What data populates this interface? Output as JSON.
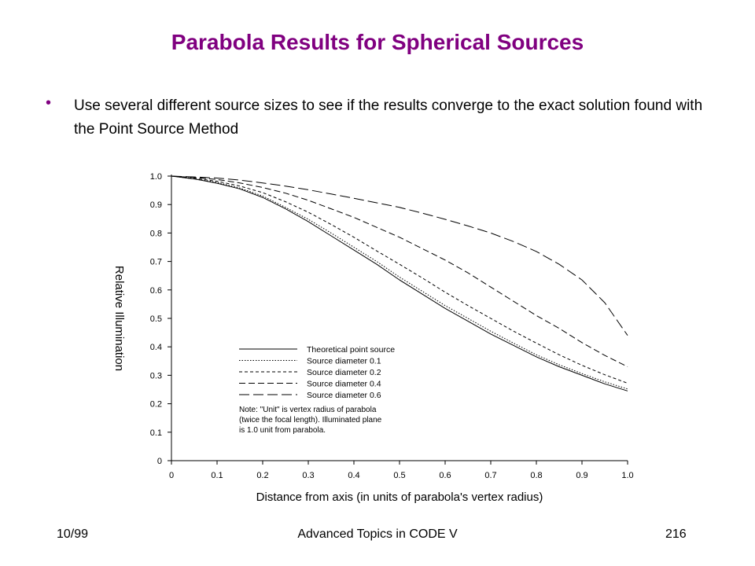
{
  "slide": {
    "title": "Parabola Results for Spherical Sources",
    "bullet": "Use several different source sizes to see if the results converge to the exact solution found with the Point Source Method"
  },
  "footer": {
    "left": "10/99",
    "center": "Advanced Topics in CODE V",
    "right": "216"
  },
  "chart_data": {
    "type": "line",
    "title": "",
    "xlabel": "Distance from axis (in units of parabola's vertex radius)",
    "ylabel": "Relative Illumination",
    "xlim": [
      0,
      1.0
    ],
    "ylim": [
      0,
      1.0
    ],
    "x_ticks": [
      "0",
      "0.1",
      "0.2",
      "0.3",
      "0.4",
      "0.5",
      "0.6",
      "0.7",
      "0.8",
      "0.9",
      "1.0"
    ],
    "y_ticks": [
      "0",
      "0.1",
      "0.2",
      "0.3",
      "0.4",
      "0.5",
      "0.6",
      "0.7",
      "0.8",
      "0.9",
      "1.0"
    ],
    "grid": false,
    "legend_position": "lower-left",
    "x": [
      0,
      0.05,
      0.1,
      0.15,
      0.2,
      0.25,
      0.3,
      0.35,
      0.4,
      0.45,
      0.5,
      0.55,
      0.6,
      0.65,
      0.7,
      0.75,
      0.8,
      0.85,
      0.9,
      0.95,
      1.0
    ],
    "series": [
      {
        "name": "Theoretical point source",
        "dash": "",
        "values": [
          1.0,
          0.99,
          0.975,
          0.955,
          0.925,
          0.885,
          0.84,
          0.79,
          0.74,
          0.69,
          0.635,
          0.585,
          0.535,
          0.49,
          0.445,
          0.405,
          0.365,
          0.33,
          0.3,
          0.27,
          0.245
        ]
      },
      {
        "name": "Source diameter 0.1",
        "dash": "1.5,2",
        "values": [
          1.0,
          0.99,
          0.978,
          0.958,
          0.93,
          0.89,
          0.848,
          0.8,
          0.75,
          0.7,
          0.645,
          0.595,
          0.545,
          0.5,
          0.455,
          0.413,
          0.372,
          0.337,
          0.306,
          0.277,
          0.252
        ]
      },
      {
        "name": "Source diameter 0.2",
        "dash": "4,3",
        "values": [
          1.0,
          0.992,
          0.982,
          0.965,
          0.942,
          0.91,
          0.873,
          0.83,
          0.785,
          0.737,
          0.69,
          0.642,
          0.592,
          0.545,
          0.5,
          0.455,
          0.413,
          0.372,
          0.335,
          0.302,
          0.272
        ]
      },
      {
        "name": "Source diameter 0.4",
        "dash": "8,4",
        "values": [
          1.0,
          0.995,
          0.988,
          0.976,
          0.96,
          0.94,
          0.915,
          0.885,
          0.855,
          0.82,
          0.785,
          0.745,
          0.705,
          0.66,
          0.61,
          0.56,
          0.51,
          0.465,
          0.415,
          0.37,
          0.33
        ]
      },
      {
        "name": "Source diameter 0.6",
        "dash": "13,5",
        "values": [
          1.0,
          0.997,
          0.993,
          0.986,
          0.976,
          0.965,
          0.952,
          0.937,
          0.922,
          0.906,
          0.89,
          0.87,
          0.848,
          0.825,
          0.8,
          0.77,
          0.735,
          0.69,
          0.635,
          0.555,
          0.44
        ]
      }
    ],
    "note": [
      "Note: \"Unit\" is vertex radius of parabola",
      "(twice the focal length).  Illuminated plane",
      "is 1.0 unit from parabola."
    ]
  }
}
